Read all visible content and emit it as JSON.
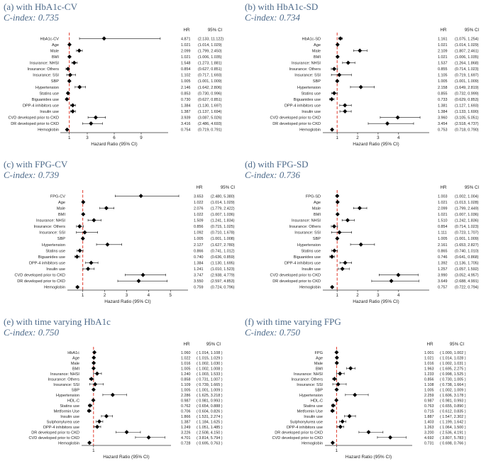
{
  "figure": {
    "colors": {
      "marker": "#000000",
      "ref_line": "#e03a2c",
      "axis": "#333333",
      "title": "#4d6a8a"
    }
  },
  "chart_data": [
    {
      "type": "forest",
      "title": "(a) with HbA1c-CV",
      "subtitle": "C-index: 0.735",
      "xlabel": "Hazard Ratio (95% CI)",
      "xlim": [
        0,
        12
      ],
      "xticks": [
        "1",
        "3",
        "6",
        "9"
      ],
      "reference": 1,
      "columns": [
        "HR",
        "95% CI"
      ],
      "labels": [
        "HbA1c-CV",
        "Age",
        "Male",
        "BMI",
        "Insurance: NHSI",
        "Insurance: Others",
        "Insurance: SSI",
        "SBP",
        "Hypertension",
        "Statins use",
        "Biguanides use",
        "DPP-4 inhibitors use",
        "Insulin use",
        "CVD developed prior to CKD",
        "DR developed prior to CKD",
        "Hemoglobin"
      ],
      "hr": [
        4.871,
        1.021,
        2.099,
        1.021,
        1.548,
        0.854,
        1.102,
        1.005,
        2.146,
        0.853,
        0.73,
        1.384,
        1.387,
        3.939,
        3.416,
        0.754
      ],
      "hr_text": [
        "4.871",
        "1.021",
        "2.099",
        "1.021",
        "1.548",
        "0.854",
        "1.102",
        "1.005",
        "2.146",
        "0.853",
        "0.730",
        "1.384",
        "1.387",
        "3.939",
        "3.416",
        "0.754"
      ],
      "lower": [
        2.133,
        1.014,
        1.799,
        1.006,
        1.273,
        0.627,
        0.717,
        1.001,
        1.642,
        0.73,
        0.627,
        1.13,
        1.137,
        3.087,
        2.486,
        0.719
      ],
      "upper": [
        11.122,
        1.029,
        2.45,
        1.035,
        1.881,
        0.851,
        1.693,
        1.009,
        2.806,
        0.996,
        0.851,
        1.697,
        1.694,
        5.026,
        4.693,
        0.791
      ],
      "ci_text": [
        "(2.133, 11.122)",
        "(1.014, 1.029)",
        "(1.799, 2.450)",
        "(1.006, 1.035)",
        "(1.273, 1.881)",
        "(0.627, 0.851)",
        "(0.717, 1.693)",
        "(1.001, 1.009)",
        "(1.642, 2.806)",
        "(0.730, 0.996)",
        "(0.627, 0.851)",
        "(1.130, 1.697)",
        "(1.137, 1.694)",
        "(3.087, 5.026)",
        "(2.486, 4.693)",
        "(0.719, 0.791)"
      ]
    },
    {
      "type": "forest",
      "title": "(b) with HbA1c-SD",
      "subtitle": "C-index: 0.734",
      "xlabel": "Hazard Ratio (95% CI)",
      "xlim": [
        0.3,
        5.5
      ],
      "xticks": [
        "1",
        "2",
        "3",
        "4"
      ],
      "reference": 1,
      "columns": [
        "HR",
        "95% CI"
      ],
      "labels": [
        "HbA1c-SD",
        "Age",
        "Male",
        "BMI",
        "Insurance: NHSI",
        "Insurance: Others",
        "Insurance: SSI",
        "SBP",
        "Hypertension",
        "Statins use",
        "Biguanides use",
        "DPP-4 inhibitors use",
        "Insulin use",
        "CVD developed prior to CKD",
        "DR developed prior to CKD",
        "Hemoglobin"
      ],
      "hr": [
        1.161,
        1.021,
        2.109,
        1.021,
        1.537,
        0.855,
        1.105,
        1.005,
        2.158,
        0.855,
        0.733,
        1.381,
        1.384,
        3.96,
        3.454,
        0.753
      ],
      "hr_text": [
        "1.161",
        "1.021",
        "2.109",
        "1.021",
        "1.537",
        "0.855",
        "1.105",
        "1.005",
        "2.158",
        "0.855",
        "0.733",
        "1.381",
        "1.384",
        "3.960",
        "3.454",
        "0.753"
      ],
      "lower": [
        1.075,
        1.014,
        1.807,
        1.006,
        1.264,
        0.714,
        0.719,
        1.001,
        1.649,
        0.732,
        0.629,
        1.127,
        1.133,
        3.105,
        2.518,
        0.718
      ],
      "upper": [
        1.254,
        1.029,
        2.461,
        1.035,
        1.868,
        1.023,
        1.697,
        1.009,
        2.819,
        0.999,
        0.853,
        1.693,
        1.69,
        5.051,
        4.737,
        0.79
      ],
      "ci_text": [
        "(1.075, 1.254)",
        "(1.014, 1.029)",
        "(1.807, 2.461)",
        "(1.006, 1.035)",
        "(1.264, 1.868)",
        "(0.714, 1.023)",
        "(0.719, 1.697)",
        "(1.001, 1.009)",
        "(1.649, 2.819)",
        "(0.732, 0.999)",
        "(0.629, 0.853)",
        "(1.127, 1.693)",
        "(1.133, 1.690)",
        "(3.105, 5.051)",
        "(2.518, 4.737)",
        "(0.718, 0.790)"
      ]
    },
    {
      "type": "forest",
      "title": "(c) with FPG-CV",
      "subtitle": "C-index: 0.739",
      "xlabel": "Hazard Ratio (95% CI)",
      "xlim": [
        0.3,
        5.8
      ],
      "xticks": [
        "1",
        "2",
        "3",
        "4",
        "5"
      ],
      "reference": 1,
      "columns": [
        "HR",
        "95% CI"
      ],
      "labels": [
        "FPG-CV",
        "Age",
        "Male",
        "BMI",
        "Insurance: NHSI",
        "Insurance: Others",
        "Insurance: SSI",
        "SBP",
        "Hypertension",
        "Statins use",
        "Biguanides use",
        "DPP-4 inhibitors use",
        "Insulin use",
        "CVD developed prior to CKD",
        "DR developed prior to CKD",
        "Hemoglobin"
      ],
      "hr": [
        3.653,
        1.022,
        2.076,
        1.022,
        1.509,
        0.856,
        1.092,
        1.005,
        2.127,
        0.866,
        0.74,
        1.384,
        1.241,
        3.747,
        3.55,
        0.759
      ],
      "hr_text": [
        "3.653",
        "1.022",
        "2.076",
        "1.022",
        "1.509",
        "0.856",
        "1.092",
        "1.005",
        "2.127",
        "0.866",
        "0.740",
        "1.384",
        "1.241",
        "3.747",
        "3.550",
        "0.759"
      ],
      "lower": [
        2.48,
        1.014,
        1.779,
        1.007,
        1.241,
        0.715,
        0.71,
        1.001,
        1.627,
        0.741,
        0.636,
        1.13,
        1.01,
        2.938,
        2.597,
        0.724
      ],
      "upper": [
        5.38,
        1.029,
        2.422,
        1.036,
        1.834,
        1.025,
        1.678,
        1.008,
        2.78,
        1.012,
        0.859,
        1.695,
        1.523,
        4.779,
        4.853,
        0.796
      ],
      "ci_text": [
        "(2.480, 5.380)",
        "(1.014, 1.029)",
        "(1.779, 2.422)",
        "(1.007, 1.036)",
        "(1.241, 1.834)",
        "(0.715, 1.025)",
        "(0.710, 1.678)",
        "(1.001, 1.008)",
        "(1.627, 2.780)",
        "(0.741, 1.012)",
        "(0.636, 0.859)",
        "(1.130, 1.695)",
        "(1.010, 1.523)",
        "(2.938, 4.779)",
        "(2.597, 4.853)",
        "(0.724, 0.796)"
      ]
    },
    {
      "type": "forest",
      "title": "(d) with FPG-SD",
      "subtitle": "C-index: 0.736",
      "xlabel": "Hazard Ratio (95% CI)",
      "xlim": [
        0.3,
        5.5
      ],
      "xticks": [
        "1",
        "2",
        "3",
        "4"
      ],
      "reference": 1,
      "columns": [
        "HR",
        "95% CI"
      ],
      "labels": [
        "FPG-SD",
        "Age",
        "Male",
        "BMI",
        "Insurance: NHSI",
        "Insurance: Others",
        "Insurance: SSI",
        "SBP",
        "Hypertension",
        "Statins use",
        "Biguanides use",
        "DPP-4 inhibitors use",
        "Insulin use",
        "CVD developed prior to CKD",
        "DR developed prior to CKD",
        "Hemoglobin"
      ],
      "hr": [
        1.003,
        1.021,
        2.099,
        1.021,
        1.51,
        0.854,
        1.111,
        1.005,
        2.161,
        0.865,
        0.746,
        1.392,
        1.257,
        3.99,
        3.649,
        0.757
      ],
      "hr_text": [
        "1.003",
        "1.021",
        "2.099",
        "1.021",
        "1.510",
        "0.854",
        "1.111",
        "1.005",
        "2.161",
        "0.865",
        "0.746",
        "1.392",
        "1.257",
        "3.990",
        "3.649",
        "0.757"
      ],
      "lower": [
        1.002,
        1.013,
        1.799,
        1.007,
        1.242,
        0.714,
        0.723,
        1.001,
        1.653,
        0.74,
        0.641,
        1.136,
        1.057,
        3.052,
        2.688,
        0.722
      ],
      "upper": [
        1.004,
        1.028,
        2.449,
        1.036,
        1.836,
        1.023,
        1.707,
        1.009,
        2.827,
        1.01,
        0.868,
        1.705,
        1.592,
        4.957,
        4.991,
        0.794
      ],
      "ci_text": [
        "(1.002, 1.004)",
        "(1.013, 1.028)",
        "(1.799, 2.449)",
        "(1.007, 1.036)",
        "(1.242, 1.836)",
        "(0.714, 1.023)",
        "(0.723, 1.707)",
        "(1.001, 1.009)",
        "(1.653, 2.827)",
        "(0.740, 1.010)",
        "(0.641, 0.868)",
        "(1.136, 1.705)",
        "(1.057, 1.592)",
        "(3.052, 4.957)",
        "(2.688, 4.991)",
        "(0.722, 0.794)"
      ]
    },
    {
      "type": "forest",
      "title": "(e) with time varying HbA1c",
      "subtitle": "C-index: 0.750",
      "xlabel": "Hazard Ratio (95% CI)",
      "xlim": [
        0.2,
        6.2
      ],
      "xticks": [
        "1"
      ],
      "reference": 1,
      "columns": [
        "HR",
        "95% CI"
      ],
      "labels": [
        "HbA1c",
        "Age",
        "Male",
        "BMI",
        "Insurance: NHSI",
        "Insurance: Others",
        "Insurance: SSI",
        "SBP",
        "Hypertension",
        "HDL-C",
        "Statins use",
        "Metformin Use",
        "Insulin use",
        "Sulphonylurea use",
        "DPP-4 inhibitors use",
        "DR developed prior to CKD",
        "CVD developed prior to CKD",
        "Hemoglobin"
      ],
      "hr": [
        1.06,
        1.022,
        1.016,
        1.005,
        1.24,
        0.858,
        1.109,
        1.005,
        2.286,
        0.987,
        0.762,
        0.706,
        1.866,
        1.387,
        1.249,
        3.226,
        4.701,
        0.728
      ],
      "hr_text": [
        "1.060",
        "1.022",
        "1.016",
        "1.005",
        "1.240",
        "0.858",
        "1.109",
        "1.005",
        "2.286",
        "0.987",
        "0.762",
        "0.706",
        "1.866",
        "1.387",
        "1.249",
        "3.226",
        "4.701",
        "0.728"
      ],
      "lower": [
        1.014,
        1.015,
        1.002,
        1.002,
        1.003,
        0.731,
        0.739,
        1.001,
        1.625,
        0.981,
        0.654,
        0.604,
        1.531,
        1.184,
        1.051,
        2.508,
        3.814,
        0.695
      ],
      "upper": [
        1.108,
        1.029,
        1.03,
        1.008,
        1.533,
        1.007,
        1.665,
        1.009,
        3.218,
        0.993,
        0.888,
        0.826,
        2.274,
        1.625,
        1.485,
        4.15,
        5.794,
        0.763
      ],
      "ci_text": [
        "( 1.014, 1.108 )",
        "( 1.015, 1.029 )",
        "( 1.002, 1.030 )",
        "( 1.002, 1.008 )",
        "( 1.003, 1.533 )",
        "( 0.731, 1.007 )",
        "( 0.739, 1.665 )",
        "( 1.001, 1.009 )",
        "( 1.625, 3.218 )",
        "( 0.981, 0.993 )",
        "( 0.654, 0.888 )",
        "( 0.604, 0.826 )",
        "( 1.531, 2.274 )",
        "( 1.184, 1.625 )",
        "( 1.051, 1.485 )",
        "( 2.508, 4.150 )",
        "( 3.814, 5.794 )",
        "( 0.695, 0.763 )"
      ]
    },
    {
      "type": "forest",
      "title": "(f) with time varying FPG",
      "subtitle": "C-index: 0.750",
      "xlabel": "Hazard Ratio (95% CI)",
      "xlim": [
        0.2,
        6.2
      ],
      "xticks": [
        "1"
      ],
      "reference": 1,
      "columns": [
        "HR",
        "95% CI"
      ],
      "labels": [
        "FPG",
        "Age",
        "Male",
        "BMI",
        "Insurance: NHSI",
        "Insurance: Others",
        "Insurance: SSI",
        "SBP",
        "Hypertension",
        "HDL-C",
        "Statins use",
        "Metformin Use",
        "Insulin use",
        "Sulphonylurea use",
        "DPP-4 inhibitors use",
        "DR developed prior to CKD",
        "CVD developed prior to CKD",
        "Hemoglobin"
      ],
      "hr": [
        1.001,
        1.021,
        1.016,
        1.963,
        1.233,
        0.856,
        1.108,
        1.005,
        2.259,
        0.987,
        0.763,
        0.715,
        1.887,
        1.403,
        1.263,
        3.2,
        4.692,
        0.731
      ],
      "hr_text": [
        "1.001",
        "1.021",
        "1.016",
        "1.963",
        "1.233",
        "0.856",
        "1.108",
        "1.005",
        "2.259",
        "0.987",
        "0.763",
        "0.715",
        "1.887",
        "1.403",
        "1.263",
        "3.200",
        "4.692",
        "0.731"
      ],
      "lower": [
        1.0,
        1.014,
        1.002,
        1.695,
        0.998,
        0.73,
        0.738,
        1.002,
        1.606,
        0.981,
        0.655,
        0.612,
        1.547,
        1.199,
        1.064,
        2.536,
        3.807,
        0.698
      ],
      "upper": [
        1.002,
        1.028,
        1.031,
        2.275,
        1.525,
        1.005,
        1.664,
        1.009,
        3.178,
        0.993,
        0.89,
        0.835,
        2.302,
        1.642,
        1.5,
        4.191,
        5.783,
        0.766
      ],
      "ci_text": [
        "( 1.000, 1.002 )",
        "( 1.014, 1.028 )",
        "( 1.002, 1.031 )",
        "( 1.695, 2.275 )",
        "( 0.998, 1.525 )",
        "( 0.730, 1.005 )",
        "( 0.738, 1.664 )",
        "( 1.002, 1.009 )",
        "( 1.606, 3.178 )",
        "( 0.981, 0.993 )",
        "( 0.655, 0.890 )",
        "( 0.612, 0.835 )",
        "( 1.547, 2.302 )",
        "( 1.199, 1.642 )",
        "( 1.064, 1.500 )",
        "( 2.536, 4.191 )",
        "( 3.807, 5.783 )",
        "( 0.698, 0.766 )"
      ]
    }
  ]
}
